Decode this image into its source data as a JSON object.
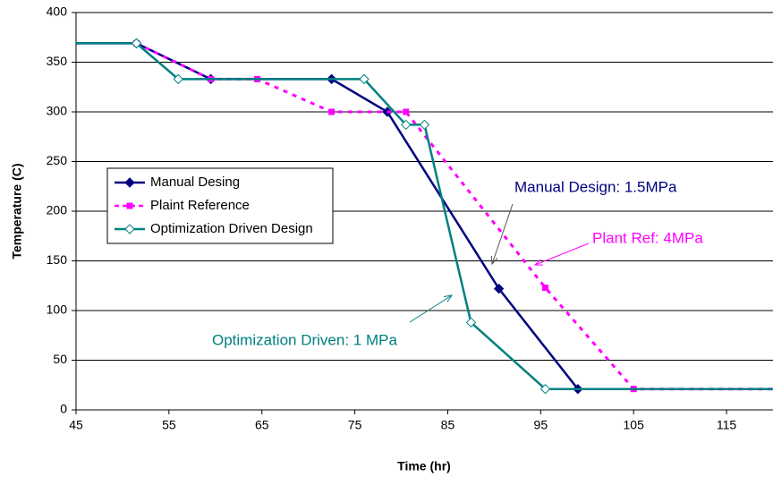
{
  "chart_data": {
    "type": "line",
    "x_label": "Time (hr)",
    "y_label": "Temperature (C)",
    "xlim": [
      45,
      120
    ],
    "xticks": [
      45,
      55,
      65,
      75,
      85,
      95,
      105,
      115
    ],
    "ylim": [
      0,
      400
    ],
    "yticks": [
      0,
      50,
      100,
      150,
      200,
      250,
      300,
      350,
      400
    ],
    "grid": true,
    "legend": "left",
    "series": [
      {
        "name": "Manual Desing",
        "color": "#000080",
        "marker": "diamond",
        "dashed": false,
        "x": [
          45,
          51.5,
          59.5,
          72.5,
          78.5,
          90.5,
          99,
          120
        ],
        "values": [
          369,
          369,
          333,
          333,
          300,
          122,
          21,
          21
        ]
      },
      {
        "name": "Plaint Reference",
        "color": "#ff00ff",
        "marker": "square",
        "dashed": true,
        "x": [
          51.5,
          59.5,
          64.5,
          72.5,
          80.5,
          95.5,
          105,
          120
        ],
        "values": [
          369,
          333,
          333,
          300,
          300,
          123,
          21,
          21
        ]
      },
      {
        "name": "Optimization Driven Design",
        "color": "#008080",
        "marker": "hollow-diamond",
        "dashed": false,
        "x": [
          45,
          51.5,
          56,
          76,
          80.5,
          82.5,
          87.5,
          95.5,
          120
        ],
        "values": [
          369,
          369,
          333,
          333,
          287,
          287,
          88,
          21,
          21
        ]
      }
    ],
    "annotations": [
      {
        "text": "Manual Design: 1.5MPa",
        "color": "#000080"
      },
      {
        "text": "Plant Ref:  4MPa",
        "color": "#ff00ff"
      },
      {
        "text": "Optimization Driven: 1 MPa",
        "color": "#008080"
      }
    ]
  }
}
